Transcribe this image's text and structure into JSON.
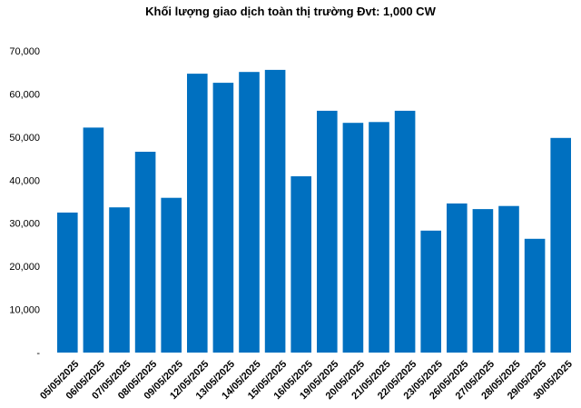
{
  "chart_data": {
    "type": "bar",
    "title": "Khối lượng giao dịch toàn thị trường Đvt: 1,000 CW",
    "xlabel": "",
    "ylabel": "",
    "categories": [
      "05/05/2025",
      "06/05/2025",
      "07/05/2025",
      "08/05/2025",
      "09/05/2025",
      "12/05/2025",
      "13/05/2025",
      "14/05/2025",
      "15/05/2025",
      "16/05/2025",
      "19/05/2025",
      "20/05/2025",
      "21/05/2025",
      "22/05/2025",
      "23/05/2025",
      "26/05/2025",
      "27/05/2025",
      "28/05/2025",
      "29/05/2025",
      "30/05/2025"
    ],
    "values": [
      32500,
      52200,
      33700,
      46600,
      35900,
      64700,
      62600,
      65100,
      65600,
      40900,
      56100,
      53300,
      53500,
      56100,
      28300,
      34600,
      33300,
      34000,
      26400,
      49800
    ],
    "y_ticks": [
      "-",
      "10,000",
      "20,000",
      "30,000",
      "40,000",
      "50,000",
      "60,000",
      "70,000"
    ],
    "ylim": [
      0,
      70000
    ],
    "grid": false,
    "legend": "none",
    "bar_color": "#0070c0"
  }
}
